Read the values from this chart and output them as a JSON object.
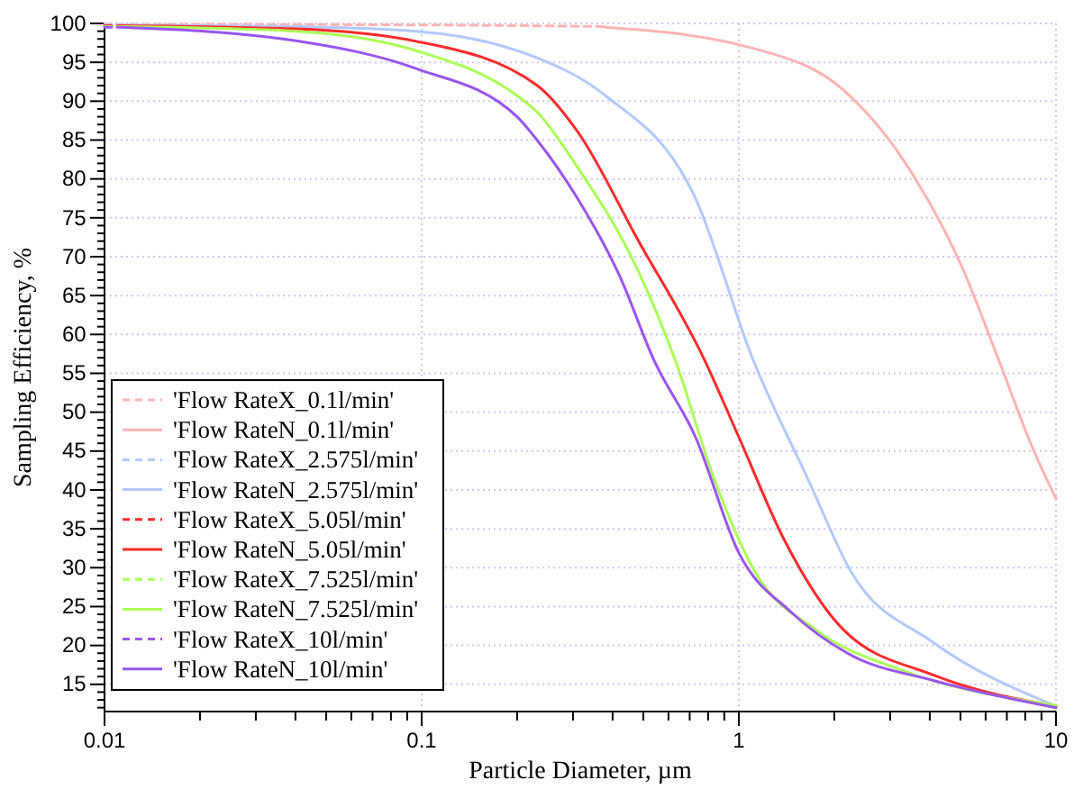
{
  "chart_data": {
    "type": "line",
    "xlabel": "Particle Diameter, µm",
    "ylabel": "Sampling Efficiency, %",
    "log": "x",
    "xlim": [
      0.01,
      10
    ],
    "ylim": [
      11.5,
      100
    ],
    "xticks": [
      0.01,
      {
        "value": 0.02,
        "label": null
      },
      {
        "value": 0.03,
        "label": null
      },
      {
        "value": 0.04,
        "label": null
      },
      {
        "value": 0.05,
        "label": null
      },
      {
        "value": 0.06,
        "label": null
      },
      {
        "value": 0.07,
        "label": null
      },
      {
        "value": 0.08,
        "label": null
      },
      {
        "value": 0.09,
        "label": null
      },
      0.1,
      {
        "value": 0.2,
        "label": null
      },
      {
        "value": 0.3,
        "label": null
      },
      {
        "value": 0.4,
        "label": null
      },
      {
        "value": 0.5,
        "label": null
      },
      {
        "value": 0.6,
        "label": null
      },
      {
        "value": 0.7,
        "label": null
      },
      {
        "value": 0.8,
        "label": null
      },
      {
        "value": 0.9,
        "label": null
      },
      1,
      {
        "value": 2,
        "label": null
      },
      {
        "value": 3,
        "label": null
      },
      {
        "value": 4,
        "label": null
      },
      {
        "value": 5,
        "label": null
      },
      {
        "value": 6,
        "label": null
      },
      {
        "value": 7,
        "label": null
      },
      {
        "value": 8,
        "label": null
      },
      {
        "value": 9,
        "label": null
      },
      10
    ],
    "yticks": [
      {
        "value": 12,
        "label": null
      },
      {
        "value": 13,
        "label": null
      },
      {
        "value": 14,
        "label": null
      },
      15,
      {
        "value": 16,
        "label": null
      },
      {
        "value": 17,
        "label": null
      },
      {
        "value": 18,
        "label": null
      },
      {
        "value": 19,
        "label": null
      },
      20,
      {
        "value": 21,
        "label": null
      },
      {
        "value": 22,
        "label": null
      },
      {
        "value": 23,
        "label": null
      },
      {
        "value": 24,
        "label": null
      },
      25,
      {
        "value": 26,
        "label": null
      },
      {
        "value": 27,
        "label": null
      },
      {
        "value": 28,
        "label": null
      },
      {
        "value": 29,
        "label": null
      },
      30,
      {
        "value": 31,
        "label": null
      },
      {
        "value": 32,
        "label": null
      },
      {
        "value": 33,
        "label": null
      },
      {
        "value": 34,
        "label": null
      },
      35,
      {
        "value": 36,
        "label": null
      },
      {
        "value": 37,
        "label": null
      },
      {
        "value": 38,
        "label": null
      },
      {
        "value": 39,
        "label": null
      },
      40,
      {
        "value": 41,
        "label": null
      },
      {
        "value": 42,
        "label": null
      },
      {
        "value": 43,
        "label": null
      },
      {
        "value": 44,
        "label": null
      },
      45,
      {
        "value": 46,
        "label": null
      },
      {
        "value": 47,
        "label": null
      },
      {
        "value": 48,
        "label": null
      },
      {
        "value": 49,
        "label": null
      },
      50,
      {
        "value": 51,
        "label": null
      },
      {
        "value": 52,
        "label": null
      },
      {
        "value": 53,
        "label": null
      },
      {
        "value": 54,
        "label": null
      },
      55,
      {
        "value": 56,
        "label": null
      },
      {
        "value": 57,
        "label": null
      },
      {
        "value": 58,
        "label": null
      },
      {
        "value": 59,
        "label": null
      },
      60,
      {
        "value": 61,
        "label": null
      },
      {
        "value": 62,
        "label": null
      },
      {
        "value": 63,
        "label": null
      },
      {
        "value": 64,
        "label": null
      },
      65,
      {
        "value": 66,
        "label": null
      },
      {
        "value": 67,
        "label": null
      },
      {
        "value": 68,
        "label": null
      },
      {
        "value": 69,
        "label": null
      },
      70,
      {
        "value": 71,
        "label": null
      },
      {
        "value": 72,
        "label": null
      },
      {
        "value": 73,
        "label": null
      },
      {
        "value": 74,
        "label": null
      },
      75,
      {
        "value": 76,
        "label": null
      },
      {
        "value": 77,
        "label": null
      },
      {
        "value": 78,
        "label": null
      },
      {
        "value": 79,
        "label": null
      },
      80,
      {
        "value": 81,
        "label": null
      },
      {
        "value": 82,
        "label": null
      },
      {
        "value": 83,
        "label": null
      },
      {
        "value": 84,
        "label": null
      },
      85,
      {
        "value": 86,
        "label": null
      },
      {
        "value": 87,
        "label": null
      },
      {
        "value": 88,
        "label": null
      },
      {
        "value": 89,
        "label": null
      },
      90,
      {
        "value": 91,
        "label": null
      },
      {
        "value": 92,
        "label": null
      },
      {
        "value": 93,
        "label": null
      },
      {
        "value": 94,
        "label": null
      },
      95,
      {
        "value": 96,
        "label": null
      },
      {
        "value": 97,
        "label": null
      },
      {
        "value": 98,
        "label": null
      },
      {
        "value": 99,
        "label": null
      },
      100
    ],
    "grid": true,
    "legend": "bottom left",
    "marker": "none",
    "series": [
      {
        "name": "'Flow RateX_0.1l/min'",
        "color": "#ffb3b3",
        "line_style": "dashed",
        "x": [
          0.01,
          0.1,
          0.38
        ],
        "values": [
          99.9,
          99.8,
          99.6
        ]
      },
      {
        "name": "'Flow RateN_0.1l/min'",
        "color": "#ffb3b3",
        "line_style": "solid",
        "x": [
          0.38,
          1.11,
          2.14,
          3.33,
          5.1,
          6.6,
          8.5,
          10
        ],
        "values": [
          99.5,
          96.8,
          91.4,
          82.2,
          68.3,
          56.7,
          45.1,
          38.9
        ]
      },
      {
        "name": "'Flow RateX_2.575l/min'",
        "color": "#b3c8ff",
        "line_style": "dashed",
        "x": [
          0.01,
          0.0113
        ],
        "values": [
          99.8,
          99.8
        ]
      },
      {
        "name": "'Flow RateN_2.575l/min'",
        "color": "#b3c8ff",
        "line_style": "solid",
        "x": [
          0.0113,
          0.04,
          0.096,
          0.2,
          0.23,
          0.38,
          0.73,
          1.11,
          1.66,
          2.25,
          4.1,
          10
        ],
        "values": [
          99.8,
          99.6,
          99.0,
          96.5,
          95.6,
          90.7,
          77.5,
          56.7,
          41.2,
          29.6,
          20.4,
          12.2
        ]
      },
      {
        "name": "'Flow RateX_5.05l/min'",
        "color": "#ff2a2a",
        "line_style": "dashed",
        "x": [
          0.01,
          0.0113
        ],
        "values": [
          99.7,
          99.7
        ]
      },
      {
        "name": "'Flow RateN_5.05l/min'",
        "color": "#ff2a2a",
        "line_style": "solid",
        "x": [
          0.0113,
          0.04,
          0.096,
          0.23,
          0.31,
          0.48,
          0.78,
          1.0,
          1.39,
          2.14,
          4.1,
          10
        ],
        "values": [
          99.7,
          99.3,
          97.7,
          92.1,
          86.1,
          72.2,
          56.7,
          46.8,
          33.6,
          22.0,
          16.2,
          12.2
        ]
      },
      {
        "name": "'Flow RateX_7.525l/min'",
        "color": "#aaff55",
        "line_style": "dashed",
        "x": [
          0.01,
          0.0113
        ],
        "values": [
          99.6,
          99.6
        ]
      },
      {
        "name": "'Flow RateN_7.525l/min'",
        "color": "#aaff55",
        "line_style": "solid",
        "x": [
          0.0113,
          0.04,
          0.096,
          0.2,
          0.23,
          0.31,
          0.48,
          0.63,
          0.84,
          1.12,
          1.75,
          3.33,
          10
        ],
        "values": [
          99.6,
          99.0,
          96.5,
          90.7,
          88.7,
          81.5,
          68.3,
          56.7,
          41.2,
          29.6,
          22.0,
          16.7,
          12.3
        ]
      },
      {
        "name": "'Flow RateX_10l/min'",
        "color": "#9955ee",
        "line_style": "dashed",
        "x": [
          0.01,
          0.0113
        ],
        "values": [
          99.5,
          99.5
        ]
      },
      {
        "name": "'Flow RateN_10l/min'",
        "color": "#9955ee",
        "line_style": "solid",
        "x": [
          0.0113,
          0.041,
          0.096,
          0.2,
          0.229,
          0.31,
          0.42,
          0.54,
          0.73,
          1.0,
          1.46,
          2.2,
          4.1,
          10
        ],
        "values": [
          99.5,
          97.7,
          94.2,
          88.0,
          85.2,
          77.5,
          67.6,
          56.7,
          46.8,
          31.9,
          24.3,
          19.0,
          15.5,
          12.0
        ]
      }
    ]
  }
}
